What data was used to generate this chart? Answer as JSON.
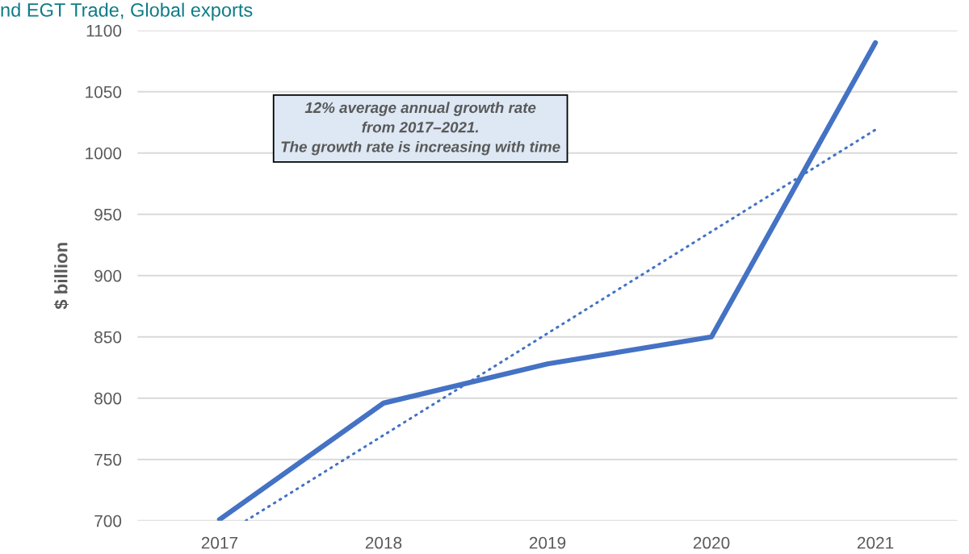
{
  "chart_data": {
    "type": "line",
    "title": "nd EGT Trade, Global exports",
    "ylabel": "$ billion",
    "x": [
      2017,
      2018,
      2019,
      2020,
      2021
    ],
    "series": [
      {
        "color": "#4472c4",
        "values": [
          701,
          796,
          828,
          850,
          1090
        ],
        "line_style": "solid"
      },
      {
        "type": "line",
        "color": "#4472c4",
        "x": [
          2017.16,
          2021
        ],
        "values": [
          700,
          1019
        ],
        "line_style": "dotted"
      }
    ],
    "xlim": [
      2016.5,
      2021.5
    ],
    "xticks": [
      2017,
      2018,
      2019,
      2020,
      2021
    ],
    "ylim": [
      700,
      1100
    ],
    "yticks": [
      700,
      750,
      800,
      850,
      900,
      950,
      1000,
      1050,
      1100
    ],
    "grid": "y",
    "legend": false,
    "marker": "none",
    "annotations": [
      "12% average annual growth rate\nfrom 2017–2021.\nThe growth rate is increasing with time"
    ]
  }
}
